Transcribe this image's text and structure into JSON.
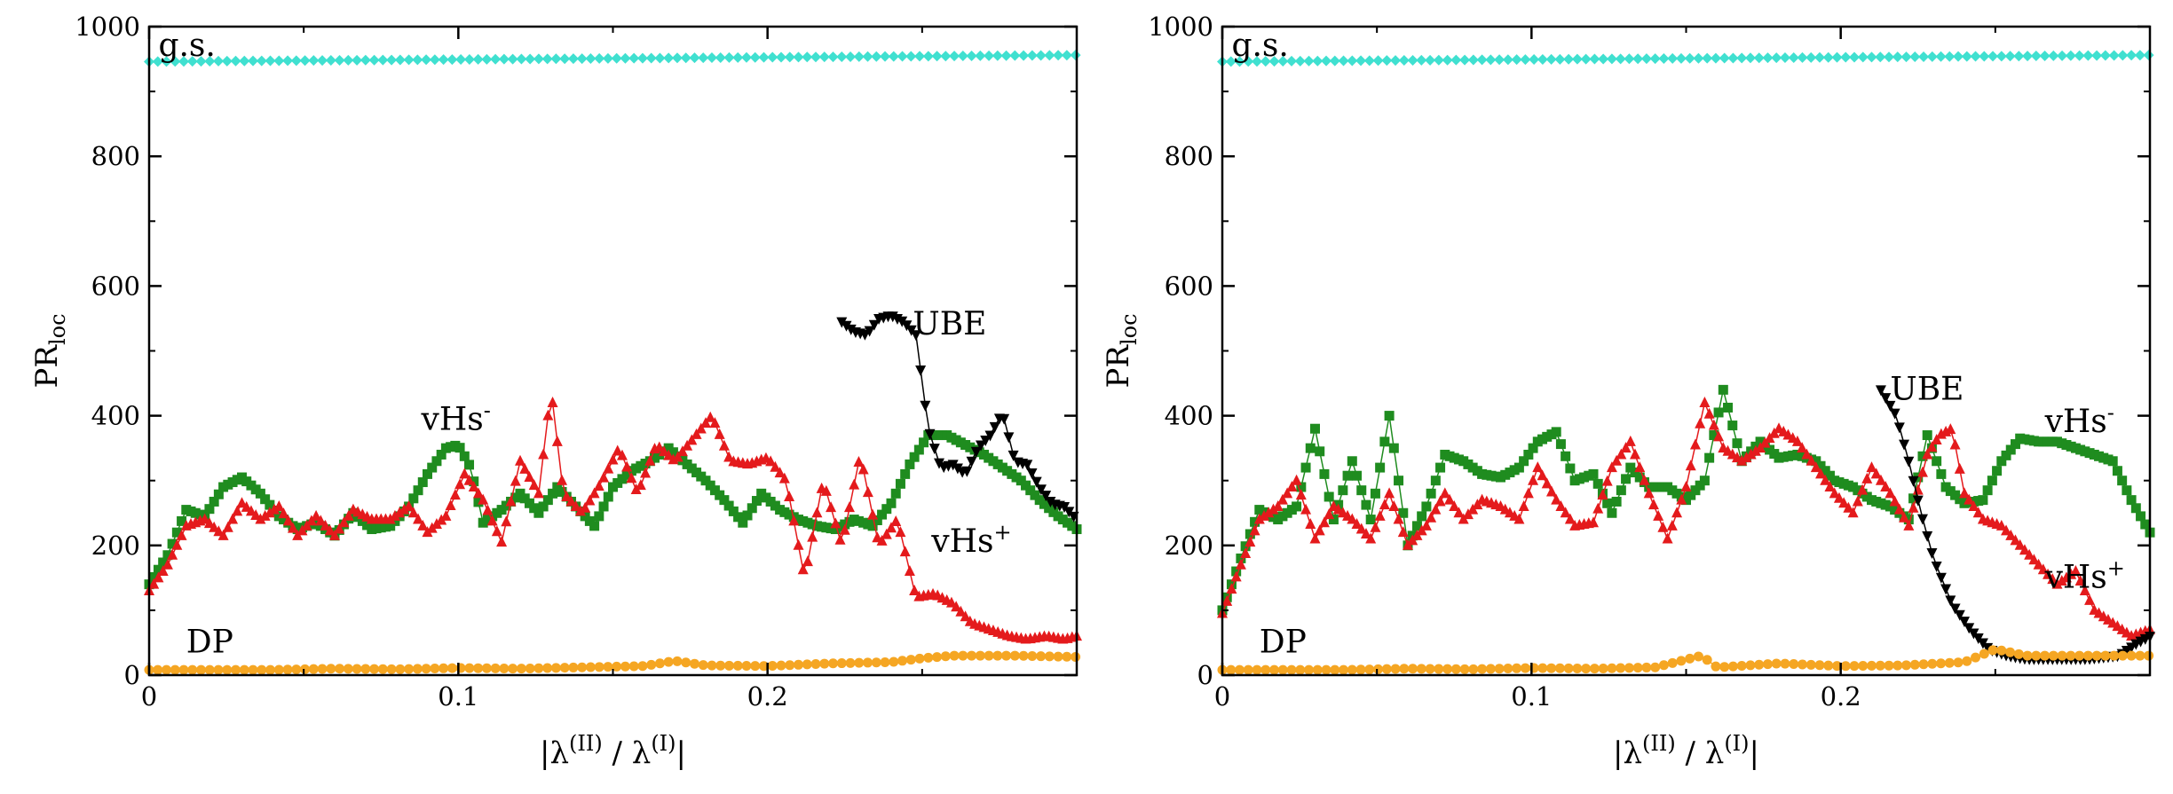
{
  "chart_data": [
    {
      "type": "line",
      "panel": "left",
      "xlabel": {
        "base": "|λ",
        "sup1": "(II)",
        "mid": " / λ",
        "sup2": "(I)",
        "end": "|"
      },
      "ylabel": {
        "base": "PR",
        "sub": "loc"
      },
      "xlim": [
        0,
        0.3
      ],
      "ylim": [
        0,
        1000
      ],
      "x_ticks": [
        0,
        0.1,
        0.2
      ],
      "x_tick_labels": [
        "0",
        "0.1",
        "0.2"
      ],
      "y_ticks": [
        0,
        200,
        400,
        600,
        800,
        1000
      ],
      "y_tick_labels": [
        "0",
        "200",
        "400",
        "600",
        "800",
        "1000"
      ],
      "annotations": [
        {
          "base": "g.s.",
          "x": 0.003,
          "y": 955
        },
        {
          "base": "DP",
          "x": 0.012,
          "y": 35
        },
        {
          "base": "vHs",
          "sup": "-",
          "x": 0.088,
          "y": 378
        },
        {
          "base": "vHs",
          "sup": "+",
          "x": 0.253,
          "y": 190
        },
        {
          "base": "UBE",
          "x": 0.247,
          "y": 525
        }
      ],
      "series": [
        {
          "name": "g.s.",
          "color": "#40e0d0",
          "marker": "diamond",
          "x": [
            0,
            0.3
          ],
          "y": [
            946,
            956
          ]
        },
        {
          "name": "vHs-",
          "color": "#1f8c1f",
          "marker": "square",
          "x": [
            0,
            0.006,
            0.012,
            0.018,
            0.024,
            0.03,
            0.036,
            0.042,
            0.048,
            0.054,
            0.06,
            0.066,
            0.072,
            0.078,
            0.084,
            0.09,
            0.096,
            0.1,
            0.104,
            0.108,
            0.114,
            0.12,
            0.126,
            0.132,
            0.138,
            0.144,
            0.15,
            0.156,
            0.162,
            0.168,
            0.174,
            0.18,
            0.186,
            0.192,
            0.198,
            0.204,
            0.21,
            0.216,
            0.222,
            0.228,
            0.234,
            0.24,
            0.246,
            0.252,
            0.258,
            0.264,
            0.27,
            0.276,
            0.282,
            0.288,
            0.294,
            0.3
          ],
          "y": [
            140,
            185,
            255,
            245,
            290,
            305,
            280,
            245,
            225,
            235,
            215,
            250,
            225,
            230,
            260,
            310,
            350,
            355,
            320,
            235,
            255,
            280,
            250,
            290,
            260,
            230,
            290,
            315,
            330,
            350,
            325,
            300,
            270,
            235,
            280,
            255,
            240,
            230,
            225,
            240,
            230,
            265,
            325,
            370,
            370,
            355,
            340,
            320,
            300,
            270,
            245,
            225
          ]
        },
        {
          "name": "vHs+",
          "color": "#e41a1c",
          "marker": "triangle-up",
          "x": [
            0,
            0.006,
            0.012,
            0.018,
            0.024,
            0.03,
            0.036,
            0.042,
            0.048,
            0.054,
            0.06,
            0.066,
            0.072,
            0.078,
            0.084,
            0.09,
            0.096,
            0.102,
            0.108,
            0.114,
            0.12,
            0.126,
            0.13,
            0.134,
            0.14,
            0.146,
            0.152,
            0.158,
            0.164,
            0.17,
            0.176,
            0.182,
            0.188,
            0.194,
            0.2,
            0.206,
            0.212,
            0.218,
            0.224,
            0.23,
            0.236,
            0.242,
            0.248,
            0.254,
            0.26,
            0.266,
            0.272,
            0.278,
            0.284,
            0.29,
            0.296,
            0.3
          ],
          "y": [
            130,
            170,
            230,
            240,
            215,
            265,
            240,
            260,
            215,
            245,
            215,
            255,
            240,
            240,
            260,
            220,
            245,
            310,
            270,
            205,
            330,
            280,
            440,
            280,
            250,
            295,
            350,
            280,
            355,
            330,
            365,
            400,
            330,
            325,
            335,
            300,
            150,
            300,
            200,
            340,
            200,
            240,
            120,
            125,
            110,
            80,
            70,
            60,
            55,
            60,
            55,
            60
          ]
        },
        {
          "name": "UBE",
          "color": "#000000",
          "marker": "triangle-down",
          "x": [
            0.224,
            0.228,
            0.232,
            0.236,
            0.24,
            0.244,
            0.248,
            0.252,
            0.256,
            0.26,
            0.264,
            0.268,
            0.272,
            0.276,
            0.28,
            0.284,
            0.288,
            0.292,
            0.296,
            0.3
          ],
          "y": [
            545,
            530,
            525,
            550,
            555,
            545,
            525,
            380,
            320,
            325,
            310,
            350,
            370,
            405,
            330,
            325,
            290,
            265,
            260,
            240
          ]
        },
        {
          "name": "DP",
          "color": "#f5a623",
          "marker": "circle",
          "x": [
            0,
            0.02,
            0.04,
            0.06,
            0.08,
            0.1,
            0.12,
            0.14,
            0.16,
            0.17,
            0.18,
            0.2,
            0.22,
            0.24,
            0.25,
            0.26,
            0.28,
            0.3
          ],
          "y": [
            8,
            8,
            8,
            10,
            9,
            11,
            10,
            12,
            14,
            22,
            15,
            14,
            18,
            20,
            26,
            30,
            30,
            28
          ]
        }
      ]
    },
    {
      "type": "line",
      "panel": "right",
      "xlabel": {
        "base": "|λ",
        "sup1": "(II)",
        "mid": " / λ",
        "sup2": "(I)",
        "end": "|"
      },
      "ylabel": {
        "base": "PR",
        "sub": "loc"
      },
      "xlim": [
        0,
        0.3
      ],
      "ylim": [
        0,
        1000
      ],
      "x_ticks": [
        0,
        0.1,
        0.2
      ],
      "x_tick_labels": [
        "0",
        "0.1",
        "0.2"
      ],
      "y_ticks": [
        0,
        200,
        400,
        600,
        800,
        1000
      ],
      "y_tick_labels": [
        "0",
        "200",
        "400",
        "600",
        "800",
        "1000"
      ],
      "annotations": [
        {
          "base": "g.s.",
          "x": 0.003,
          "y": 955
        },
        {
          "base": "DP",
          "x": 0.012,
          "y": 35
        },
        {
          "base": "vHs",
          "sup": "-",
          "x": 0.266,
          "y": 375
        },
        {
          "base": "vHs",
          "sup": "+",
          "x": 0.266,
          "y": 135
        },
        {
          "base": "UBE",
          "x": 0.216,
          "y": 425
        }
      ],
      "series": [
        {
          "name": "g.s.",
          "color": "#40e0d0",
          "marker": "diamond",
          "x": [
            0,
            0.3
          ],
          "y": [
            946,
            956
          ]
        },
        {
          "name": "vHs-",
          "color": "#1f8c1f",
          "marker": "square",
          "x": [
            0,
            0.006,
            0.012,
            0.018,
            0.024,
            0.03,
            0.036,
            0.042,
            0.048,
            0.054,
            0.06,
            0.066,
            0.072,
            0.078,
            0.084,
            0.09,
            0.096,
            0.102,
            0.108,
            0.114,
            0.12,
            0.126,
            0.132,
            0.138,
            0.144,
            0.15,
            0.156,
            0.162,
            0.168,
            0.174,
            0.18,
            0.186,
            0.192,
            0.198,
            0.204,
            0.21,
            0.216,
            0.222,
            0.228,
            0.234,
            0.24,
            0.246,
            0.252,
            0.258,
            0.264,
            0.27,
            0.276,
            0.282,
            0.288,
            0.294,
            0.3
          ],
          "y": [
            100,
            180,
            255,
            240,
            260,
            380,
            240,
            330,
            240,
            400,
            200,
            260,
            340,
            330,
            310,
            305,
            320,
            360,
            375,
            300,
            310,
            250,
            320,
            290,
            290,
            270,
            300,
            440,
            330,
            360,
            335,
            340,
            330,
            300,
            290,
            270,
            260,
            240,
            370,
            290,
            265,
            270,
            330,
            365,
            360,
            360,
            350,
            340,
            330,
            270,
            220
          ]
        },
        {
          "name": "vHs+",
          "color": "#e41a1c",
          "marker": "triangle-up",
          "x": [
            0,
            0.006,
            0.012,
            0.018,
            0.024,
            0.03,
            0.036,
            0.042,
            0.048,
            0.054,
            0.06,
            0.066,
            0.072,
            0.078,
            0.084,
            0.09,
            0.096,
            0.102,
            0.108,
            0.114,
            0.12,
            0.126,
            0.132,
            0.138,
            0.144,
            0.15,
            0.156,
            0.162,
            0.168,
            0.174,
            0.18,
            0.186,
            0.192,
            0.198,
            0.204,
            0.21,
            0.216,
            0.222,
            0.228,
            0.232,
            0.236,
            0.24,
            0.246,
            0.252,
            0.258,
            0.264,
            0.27,
            0.276,
            0.282,
            0.288,
            0.294,
            0.3
          ],
          "y": [
            95,
            170,
            240,
            260,
            300,
            210,
            260,
            240,
            210,
            280,
            200,
            230,
            280,
            240,
            270,
            260,
            240,
            320,
            270,
            230,
            235,
            320,
            360,
            280,
            210,
            290,
            420,
            350,
            330,
            350,
            380,
            360,
            320,
            280,
            250,
            320,
            280,
            230,
            340,
            370,
            380,
            280,
            240,
            230,
            200,
            170,
            140,
            160,
            100,
            80,
            60,
            70
          ]
        },
        {
          "name": "UBE",
          "color": "#000000",
          "marker": "triangle-down",
          "x": [
            0.213,
            0.218,
            0.222,
            0.226,
            0.23,
            0.236,
            0.242,
            0.248,
            0.254,
            0.26,
            0.27,
            0.28,
            0.29,
            0.296,
            0.3
          ],
          "y": [
            440,
            400,
            330,
            250,
            180,
            110,
            70,
            40,
            30,
            25,
            25,
            25,
            30,
            50,
            60
          ]
        },
        {
          "name": "DP",
          "color": "#f5a623",
          "marker": "circle",
          "x": [
            0,
            0.02,
            0.04,
            0.06,
            0.08,
            0.1,
            0.12,
            0.14,
            0.155,
            0.16,
            0.18,
            0.2,
            0.22,
            0.24,
            0.25,
            0.26,
            0.28,
            0.3
          ],
          "y": [
            8,
            8,
            8,
            10,
            9,
            11,
            10,
            12,
            30,
            12,
            18,
            14,
            15,
            20,
            40,
            30,
            30,
            30
          ]
        }
      ]
    }
  ]
}
